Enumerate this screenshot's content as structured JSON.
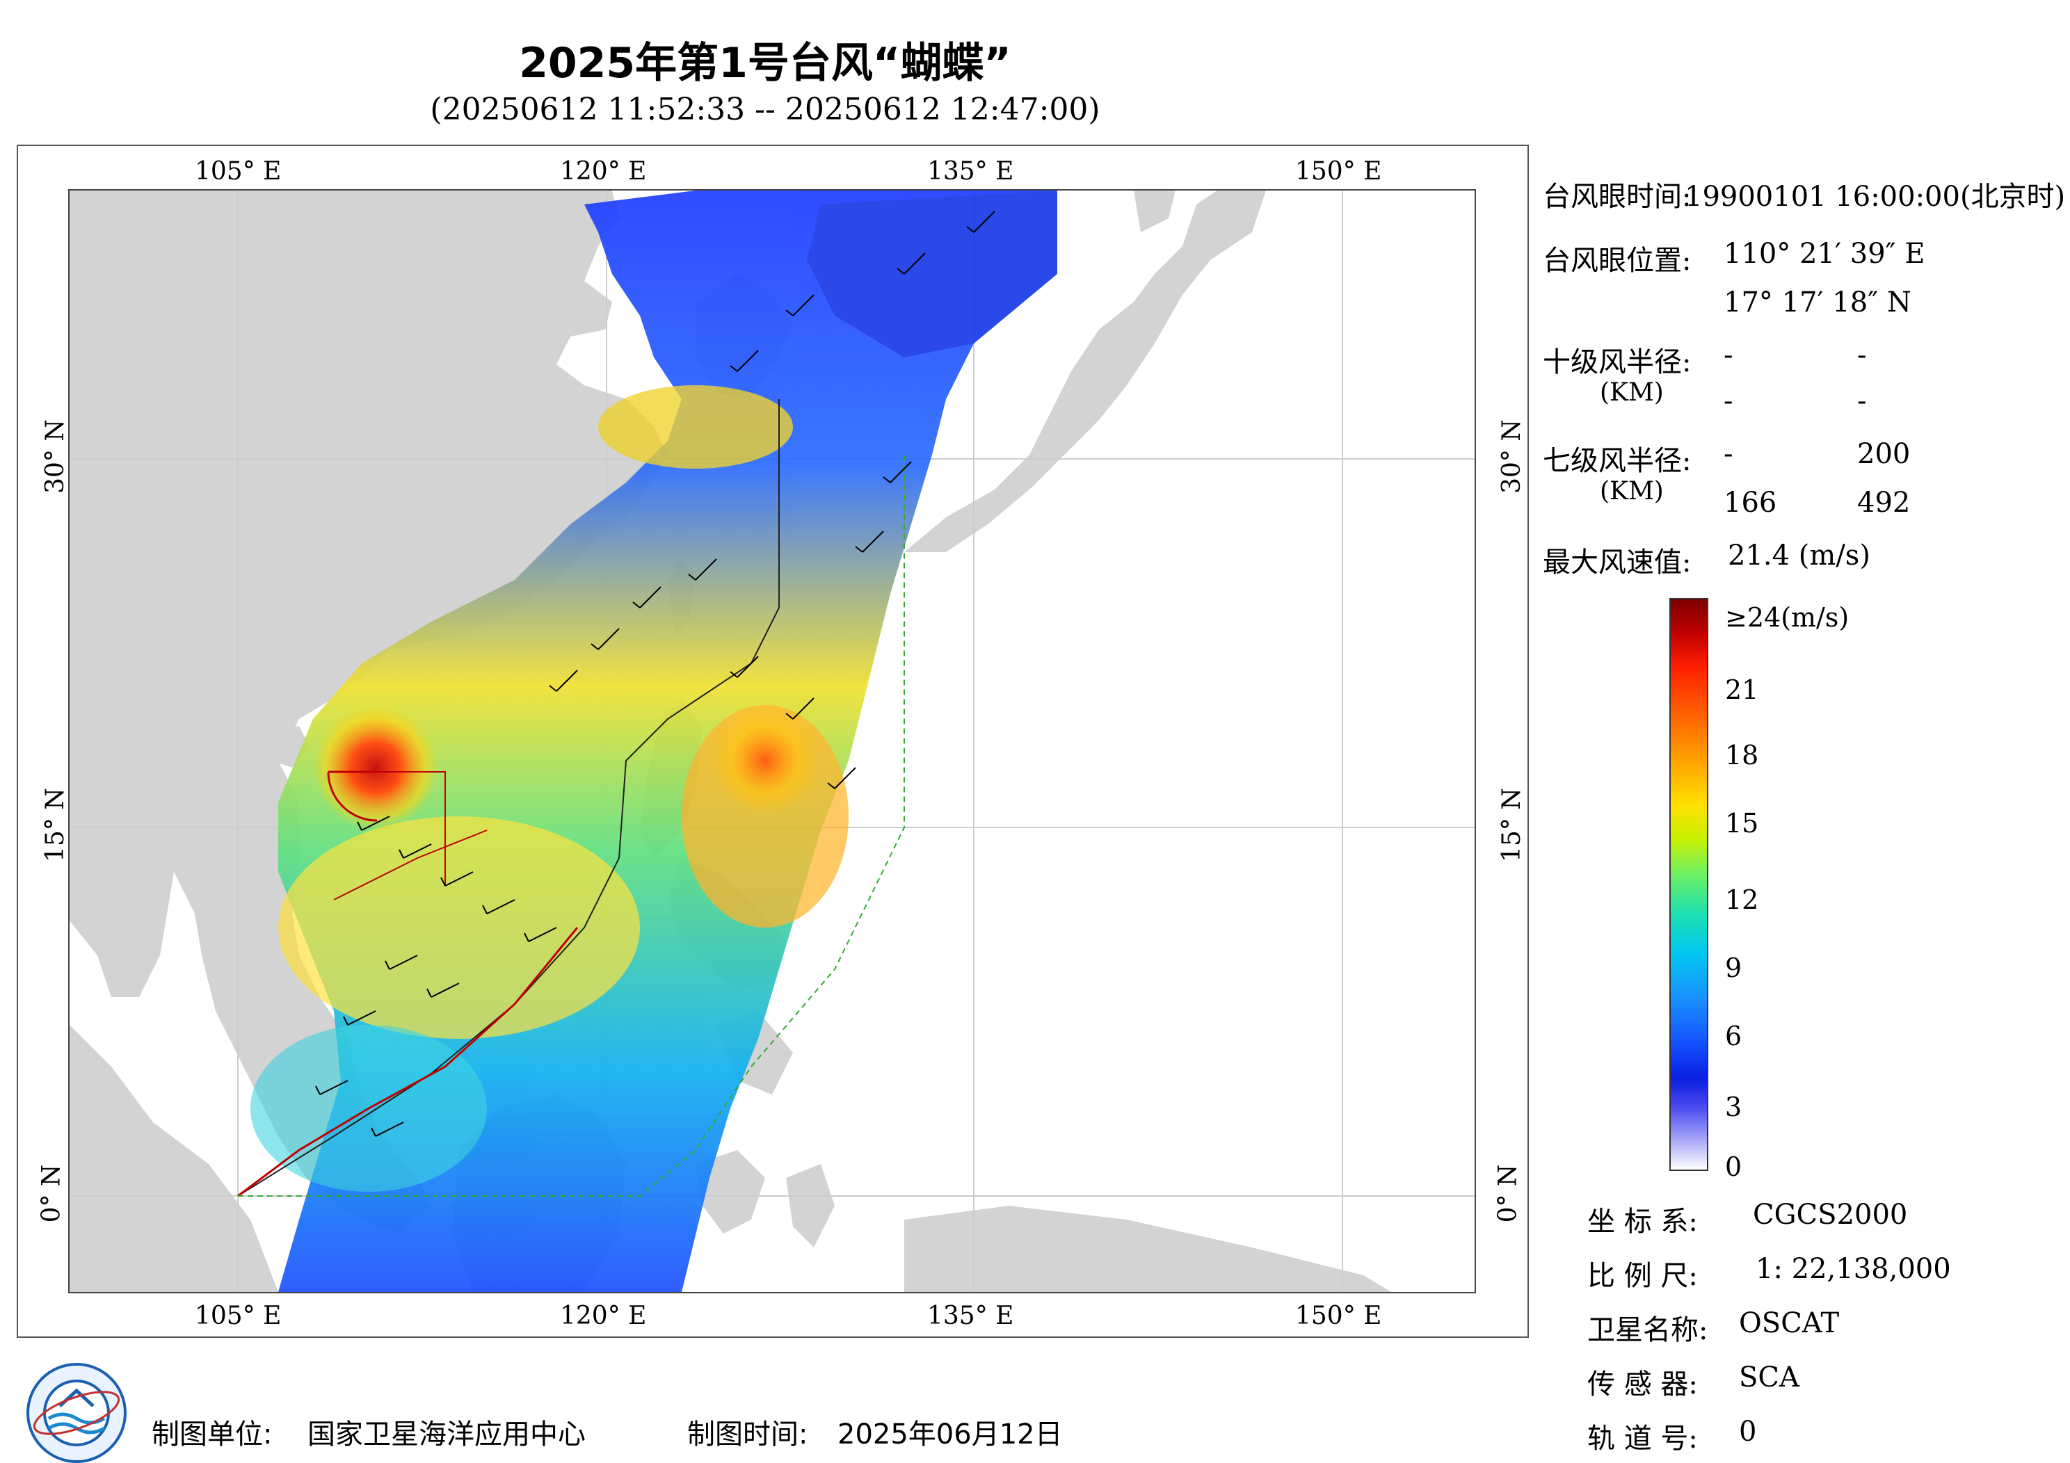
{
  "header": {
    "title": "2025年第1号台风“蝴蝶”",
    "subtitle": "(20250612 11:52:33 -- 20250612 12:47:00)"
  },
  "map": {
    "lon_labels": [
      "105° E",
      "120° E",
      "135° E",
      "150° E"
    ],
    "lat_labels": [
      "30° N",
      "15° N",
      "0° N"
    ],
    "colors": {
      "land": "#d3d3d3",
      "ocean": "#ffffff",
      "graticule": "#cccccc",
      "track": "#c00000",
      "boundary_green": "#33aa33"
    }
  },
  "info_panel": {
    "eye_time_label": "台风眼时间:",
    "eye_time_value": "19900101 16:00:00(北京时)",
    "eye_pos_label": "台风眼位置:",
    "eye_lon": "110° 21′ 39″ E",
    "eye_lat": "17° 17′ 18″ N",
    "r10_label": "十级风半径:",
    "r10_unit": "(KM)",
    "r10_values": [
      "-",
      "-",
      "-",
      "-"
    ],
    "r7_label": "七级风半径:",
    "r7_unit": "(KM)",
    "r7_values": [
      "-",
      "200",
      "166",
      "492"
    ],
    "max_wind_label": "最大风速值:",
    "max_wind_value": "21.4 (m/s)"
  },
  "colorbar": {
    "top_label": "≥24(m/s)",
    "ticks": [
      "21",
      "18",
      "15",
      "12",
      "9",
      "6",
      "3",
      "0"
    ]
  },
  "meta": {
    "crs_label": "坐 标 系:",
    "crs_value": "CGCS2000",
    "scale_label": "比 例 尺:",
    "scale_value": "1: 22,138,000",
    "satellite_label": "卫星名称:",
    "satellite_value": "OSCAT",
    "sensor_label": "传 感 器:",
    "sensor_value": "SCA",
    "orbit_label": "轨 道 号:",
    "orbit_value": "0"
  },
  "footer": {
    "producer_label": "制图单位:",
    "producer_value": "国家卫星海洋应用中心",
    "date_label": "制图时间:",
    "date_value": "2025年06月12日"
  }
}
